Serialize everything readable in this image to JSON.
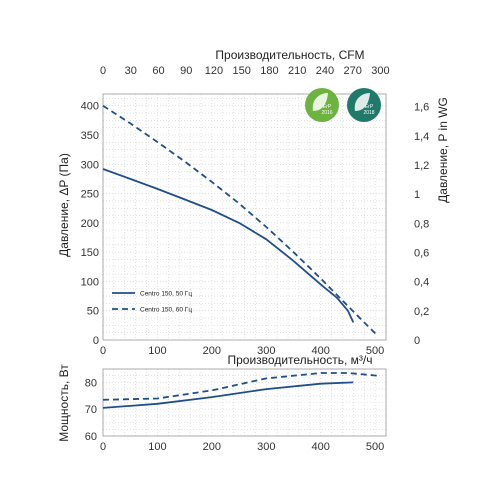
{
  "chart_data": [
    {
      "type": "line",
      "xlabel": "",
      "ylabel": "Давление, ΔP (Па)",
      "x_top_label": "Производительность, CFM",
      "y_right_label": "Давление,  P in WG",
      "x_ticks": [
        0,
        100,
        200,
        300,
        400,
        500
      ],
      "x_top_ticks": [
        0,
        30,
        60,
        90,
        120,
        150,
        180,
        210,
        240,
        270,
        300
      ],
      "y_ticks": [
        0,
        50,
        100,
        150,
        200,
        250,
        300,
        350,
        400
      ],
      "y_right_ticks": [
        "0",
        "0,2",
        "0,4",
        "0,6",
        "0,8",
        "1",
        "1,2",
        "1,4",
        "1,6"
      ],
      "xlim": [
        0,
        520
      ],
      "ylim": [
        0,
        420
      ],
      "grid": true,
      "legend": "bottom-left",
      "series": [
        {
          "name": "Centro 150, 50 Гц",
          "style": "solid",
          "x": [
            0,
            50,
            100,
            150,
            200,
            250,
            300,
            350,
            400,
            430,
            450,
            460
          ],
          "y": [
            292,
            275,
            258,
            240,
            222,
            200,
            172,
            135,
            95,
            72,
            50,
            30
          ]
        },
        {
          "name": "Centro 150, 60 Гц",
          "style": "dashed",
          "x": [
            0,
            50,
            100,
            150,
            200,
            250,
            300,
            350,
            400,
            450,
            480,
            505
          ],
          "y": [
            400,
            370,
            338,
            305,
            270,
            233,
            193,
            150,
            105,
            58,
            30,
            7
          ]
        }
      ]
    },
    {
      "type": "line",
      "xlabel": "Производительность, м³/ч",
      "ylabel": "Мощность, Вт",
      "x_ticks": [
        0,
        100,
        200,
        300,
        400,
        500
      ],
      "y_ticks": [
        60,
        70,
        80
      ],
      "xlim": [
        0,
        520
      ],
      "ylim": [
        60,
        85
      ],
      "grid": true,
      "series": [
        {
          "name": "Centro 150, 50 Гц",
          "style": "solid",
          "x": [
            0,
            100,
            200,
            300,
            400,
            460
          ],
          "y": [
            70.5,
            72,
            74.5,
            77.5,
            79.5,
            80
          ]
        },
        {
          "name": "Centro 150, 60 Гц",
          "style": "dashed",
          "x": [
            0,
            100,
            200,
            300,
            400,
            450,
            505
          ],
          "y": [
            73.5,
            74,
            77,
            81.5,
            83.5,
            83.5,
            82.5
          ]
        }
      ]
    }
  ],
  "colors": {
    "line": "#1f4e8c",
    "grid": "#cfcfcf",
    "badge_green": "#6cb33f",
    "badge_teal": "#1f7a6b",
    "badge_ring": "#ffffff"
  },
  "badges": [
    {
      "icon": "erp-2016-leaf-icon",
      "line1": "ErP",
      "line2": "2016"
    },
    {
      "icon": "erp-2018-leaf-icon",
      "line1": "ErP",
      "line2": "2018"
    }
  ]
}
